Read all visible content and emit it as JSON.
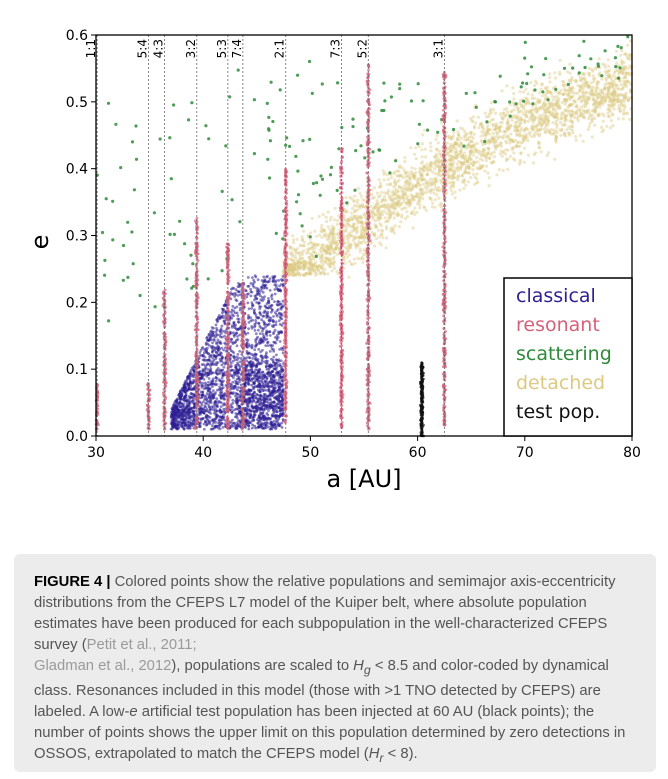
{
  "chart_data": {
    "type": "scatter",
    "title": "",
    "xlabel": "a [AU]",
    "ylabel": "e",
    "xlim": [
      30,
      80
    ],
    "ylim": [
      0.0,
      0.6
    ],
    "xticks": [
      "30",
      "40",
      "50",
      "60",
      "70",
      "80"
    ],
    "yticks": [
      "0.0",
      "0.1",
      "0.2",
      "0.3",
      "0.4",
      "0.5",
      "0.6"
    ],
    "xtick_values": [
      30,
      40,
      50,
      60,
      70,
      80
    ],
    "ytick_values": [
      0.0,
      0.1,
      0.2,
      0.3,
      0.4,
      0.5,
      0.6
    ],
    "grid": false,
    "legend_position": "bottom-right",
    "legend": [
      {
        "label": "classical",
        "color": "#2e1f94"
      },
      {
        "label": "resonant",
        "color": "#d6617a"
      },
      {
        "label": "scattering",
        "color": "#2e8b3a"
      },
      {
        "label": "detached",
        "color": "#dcc982"
      },
      {
        "label": "test pop.",
        "color": "#111111"
      }
    ],
    "resonances": [
      {
        "label": "1:1",
        "a": 30.1,
        "e_max": 0.08
      },
      {
        "label": "5:4",
        "a": 34.9,
        "e_max": 0.08
      },
      {
        "label": "4:3",
        "a": 36.4,
        "e_max": 0.22
      },
      {
        "label": "3:2",
        "a": 39.4,
        "e_max": 0.33
      },
      {
        "label": "5:3",
        "a": 42.3,
        "e_max": 0.29
      },
      {
        "label": "7:4",
        "a": 43.7,
        "e_max": 0.23
      },
      {
        "label": "2:1",
        "a": 47.7,
        "e_max": 0.4
      },
      {
        "label": "7:3",
        "a": 52.9,
        "e_max": 0.43
      },
      {
        "label": "5:2",
        "a": 55.4,
        "e_max": 0.56
      },
      {
        "label": "3:1",
        "a": 62.5,
        "e_max": 0.55
      }
    ],
    "populations": {
      "classical": {
        "a_range": [
          37,
          47.5
        ],
        "e_range": [
          0.01,
          0.24
        ]
      },
      "detached": {
        "a_range": [
          45,
          80
        ],
        "e_trend_at_a": [
          [
            45,
            0.2
          ],
          [
            50,
            0.26
          ],
          [
            60,
            0.38
          ],
          [
            70,
            0.47
          ],
          [
            80,
            0.53
          ]
        ]
      },
      "scattering": {
        "a_range": [
          30,
          80
        ],
        "e_range": [
          0.1,
          0.6
        ]
      },
      "test_pop": {
        "a": 60.4,
        "e_range": [
          0.0,
          0.11
        ]
      }
    }
  },
  "caption": {
    "lead": "FIGURE 4 |",
    "t1": " Colored points show the relative populations and semimajor axis-eccentricity distributions from the CFEPS L7 model of the Kuiper belt, where absolute population estimates have been produced for each subpopulation in the well-characterized CFEPS survey (",
    "ref1": "Petit et al., 2011;",
    "ref2": "Gladman et al., 2012",
    "t2": "), populations are scaled to ",
    "m1": "H",
    "m1sub": "g",
    "t3": " < 8.5 and color-coded by dynamical class. Resonances included in this model (those with >1 TNO detected by CFEPS) are labeled. A low-",
    "m2": "e",
    "t4": " artificial test population has been injected at 60 AU (black points); the number of points shows the upper limit on this population determined by zero detections in OSSOS, extrapolated to match the CFEPS model (",
    "m3": "H",
    "m3sub": "r",
    "t5": " < 8)."
  }
}
